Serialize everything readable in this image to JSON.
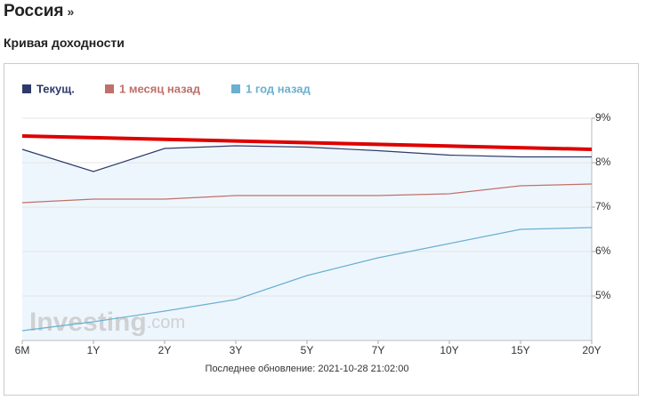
{
  "header": {
    "title": "Россия",
    "arrow": "»"
  },
  "subtitle": "Кривая доходности",
  "chart_data": {
    "type": "line",
    "categories": [
      "6M",
      "1Y",
      "2Y",
      "3Y",
      "5Y",
      "7Y",
      "10Y",
      "15Y",
      "20Y"
    ],
    "series": [
      {
        "name": "Текущ.",
        "color": "#2e3a6a",
        "values": [
          8.3,
          7.8,
          8.32,
          8.38,
          8.35,
          8.27,
          8.17,
          8.13,
          8.13
        ]
      },
      {
        "name": "1 месяц назад",
        "color": "#c0706a",
        "values": [
          7.1,
          7.18,
          7.18,
          7.26,
          7.26,
          7.26,
          7.3,
          7.48,
          7.52
        ]
      },
      {
        "name": "1 год назад",
        "color": "#6ab0d0",
        "values": [
          4.22,
          4.42,
          4.66,
          4.92,
          5.46,
          5.86,
          6.18,
          6.5,
          6.54
        ]
      }
    ],
    "trend_line": {
      "color": "#dd0000",
      "values": [
        8.6,
        8.3
      ]
    },
    "area_fill": "#eef6fd",
    "ylim": [
      4,
      9
    ],
    "yticks": [
      {
        "value": 5,
        "label": "5%"
      },
      {
        "value": 6,
        "label": "6%"
      },
      {
        "value": 7,
        "label": "7%"
      },
      {
        "value": 8,
        "label": "8%"
      },
      {
        "value": 9,
        "label": "9%"
      }
    ],
    "grid": true,
    "legend": "top-left",
    "watermark": "Investing",
    "watermark_suffix": ".com",
    "footer": "Последнее обновление: 2021-10-28 21:02:00"
  }
}
